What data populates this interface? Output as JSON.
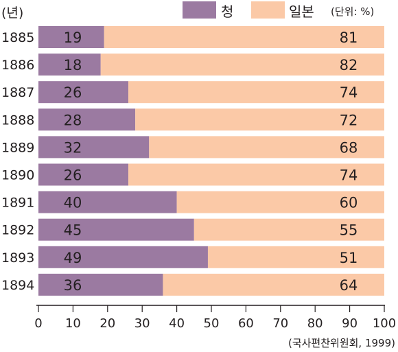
{
  "chart_data": {
    "type": "bar",
    "stacked": true,
    "orientation": "horizontal",
    "y_unit_label": "(년)",
    "unit_note": "(단위: %)",
    "source": "(국사편찬위원회, 1999)",
    "categories": [
      "1885",
      "1886",
      "1887",
      "1888",
      "1889",
      "1890",
      "1891",
      "1892",
      "1893",
      "1894"
    ],
    "series": [
      {
        "name": "청",
        "color": "#9b7aa1",
        "values": [
          19,
          18,
          26,
          28,
          32,
          26,
          40,
          45,
          49,
          36
        ]
      },
      {
        "name": "일본",
        "color": "#fbc9a7",
        "values": [
          81,
          82,
          74,
          72,
          68,
          74,
          60,
          55,
          51,
          64
        ]
      }
    ],
    "xlim": [
      0,
      100
    ],
    "xticks": [
      0,
      10,
      20,
      30,
      40,
      50,
      60,
      70,
      80,
      90,
      100
    ],
    "grid": false,
    "legend_position": "top-right"
  }
}
